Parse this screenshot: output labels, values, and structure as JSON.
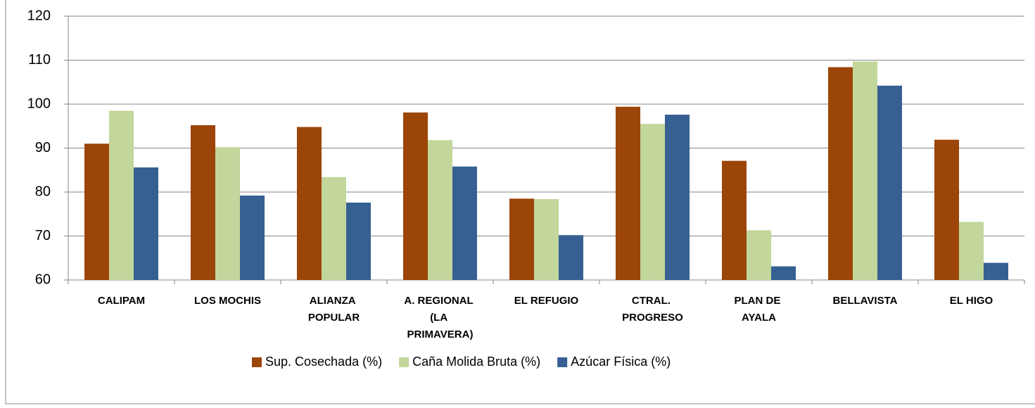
{
  "chart_data": {
    "type": "bar",
    "categories": [
      "CALIPAM",
      "LOS MOCHIS",
      "ALIANZA POPULAR",
      "A. REGIONAL (LA PRIMAVERA)",
      "EL REFUGIO",
      "CTRAL. PROGRESO",
      "PLAN DE AYALA",
      "BELLAVISTA",
      "EL HIGO"
    ],
    "series": [
      {
        "name": "Sup. Cosechada (%)",
        "color": "#9c4508",
        "values": [
          91.0,
          95.2,
          94.8,
          98.1,
          78.5,
          99.4,
          87.1,
          108.4,
          91.9
        ]
      },
      {
        "name": "Caña Molida Bruta (%)",
        "color": "#c3d69b",
        "values": [
          98.5,
          90.2,
          83.4,
          91.8,
          78.4,
          95.5,
          71.3,
          109.7,
          73.2
        ]
      },
      {
        "name": "Azúcar Física (%)",
        "color": "#376092",
        "values": [
          85.6,
          79.2,
          77.6,
          85.8,
          70.2,
          97.6,
          63.1,
          104.2,
          63.9
        ]
      }
    ],
    "ylim": [
      60,
      120
    ],
    "yticks": [
      60,
      70,
      80,
      90,
      100,
      110,
      120
    ],
    "grid": true,
    "legend": "bottom"
  }
}
